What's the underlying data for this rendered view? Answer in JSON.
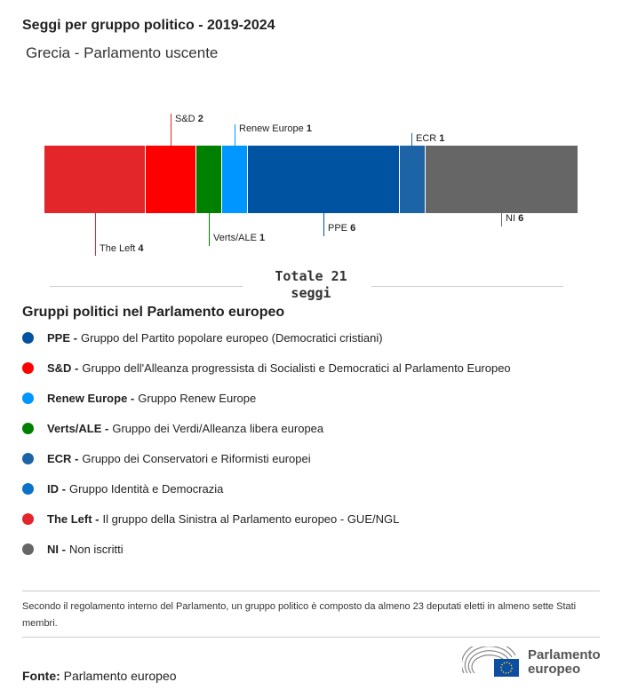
{
  "title": "Seggi per gruppo politico - 2019-2024",
  "subtitle": "Grecia - Parlamento uscente",
  "chart_data": {
    "type": "bar",
    "orientation": "stacked-horizontal",
    "categories": [
      "The Left",
      "S&D",
      "Verts/ALE",
      "Renew Europe",
      "PPE",
      "ECR",
      "NI"
    ],
    "values": [
      4,
      2,
      1,
      1,
      6,
      1,
      6
    ],
    "colors": [
      "#e3262a",
      "#ff0000",
      "#008000",
      "#0096ff",
      "#0053a0",
      "#1d64a6",
      "#666666"
    ],
    "total_label": "Totale 21 seggi"
  },
  "labels": {
    "left": {
      "name": "The Left",
      "value": "4"
    },
    "sd": {
      "name": "S&D",
      "value": "2"
    },
    "verts": {
      "name": "Verts/ALE",
      "value": "1"
    },
    "renew": {
      "name": "Renew Europe",
      "value": "1"
    },
    "ppe": {
      "name": "PPE",
      "value": "6"
    },
    "ecr": {
      "name": "ECR",
      "value": "1"
    },
    "ni": {
      "name": "NI",
      "value": "6"
    }
  },
  "legend": {
    "title": "Gruppi politici nel Parlamento europeo",
    "items": [
      {
        "abbr": "PPE -",
        "desc": "Gruppo del Partito popolare europeo (Democratici cristiani)",
        "color": "#0053a0"
      },
      {
        "abbr": "S&D -",
        "desc": "Gruppo dell'Alleanza progressista di Socialisti e Democratici al Parlamento Europeo",
        "color": "#ff0000"
      },
      {
        "abbr": "Renew Europe -",
        "desc": "Gruppo Renew Europe",
        "color": "#0096ff"
      },
      {
        "abbr": "Verts/ALE -",
        "desc": "Gruppo dei Verdi/Alleanza libera europea",
        "color": "#008000"
      },
      {
        "abbr": "ECR -",
        "desc": "Gruppo dei Conservatori e Riformisti europei",
        "color": "#1d64a6"
      },
      {
        "abbr": "ID -",
        "desc": "Gruppo Identità e Democrazia",
        "color": "#0a72c8"
      },
      {
        "abbr": "The Left -",
        "desc": "Il gruppo della Sinistra al Parlamento europeo - GUE/NGL",
        "color": "#e3262a"
      },
      {
        "abbr": "NI -",
        "desc": "Non iscritti",
        "color": "#666666"
      }
    ]
  },
  "note": "Secondo il regolamento interno del Parlamento, un gruppo politico è composto da almeno 23 deputati eletti in almeno sette Stati membri.",
  "source": {
    "label": "Fonte:",
    "value": "Parlamento europeo"
  },
  "logo_text": "Parlamento europeo"
}
